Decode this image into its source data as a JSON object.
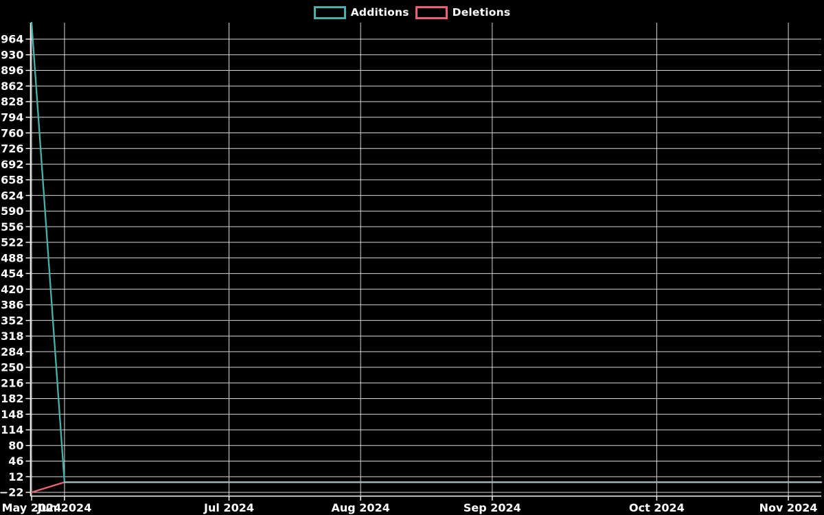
{
  "chart_data": {
    "type": "line",
    "title": "",
    "xlabel": "",
    "ylabel": "",
    "x_unit": "week",
    "num_points": 25,
    "series": [
      {
        "name": "Additions",
        "color": "#45b3ac",
        "values": [
          1000,
          0,
          0,
          0,
          0,
          0,
          0,
          0,
          0,
          0,
          0,
          0,
          0,
          0,
          0,
          0,
          0,
          0,
          0,
          0,
          0,
          0,
          0,
          0,
          0
        ]
      },
      {
        "name": "Deletions",
        "color": "#f0607a",
        "values": [
          -22,
          0,
          0,
          0,
          0,
          0,
          0,
          0,
          0,
          0,
          0,
          0,
          0,
          0,
          0,
          0,
          0,
          0,
          0,
          0,
          0,
          0,
          0,
          0,
          0
        ]
      }
    ],
    "overlap_line": {
      "from_index": 1,
      "to_index": 24,
      "value": 0,
      "color": "#a4bac3"
    },
    "x_ticks": [
      {
        "index": 0,
        "label": "May 2024"
      },
      {
        "index": 1,
        "label": "Jun 2024"
      },
      {
        "index": 6,
        "label": "Jul 2024"
      },
      {
        "index": 10,
        "label": "Aug 2024"
      },
      {
        "index": 14,
        "label": "Sep 2024"
      },
      {
        "index": 19,
        "label": "Oct 2024"
      },
      {
        "index": 23,
        "label": "Nov 2024"
      }
    ],
    "y_ticks": [
      964,
      930,
      896,
      862,
      828,
      794,
      760,
      726,
      692,
      658,
      624,
      590,
      556,
      522,
      488,
      454,
      420,
      386,
      352,
      318,
      284,
      250,
      216,
      182,
      148,
      114,
      80,
      46,
      12,
      -22
    ],
    "ylim": [
      -29.5,
      1000
    ],
    "xlim": [
      0,
      24
    ],
    "grid": true,
    "legend_position": "top-center",
    "background_color": "#000000",
    "grid_color": "#ffffff",
    "text_color": "#ffffff"
  }
}
